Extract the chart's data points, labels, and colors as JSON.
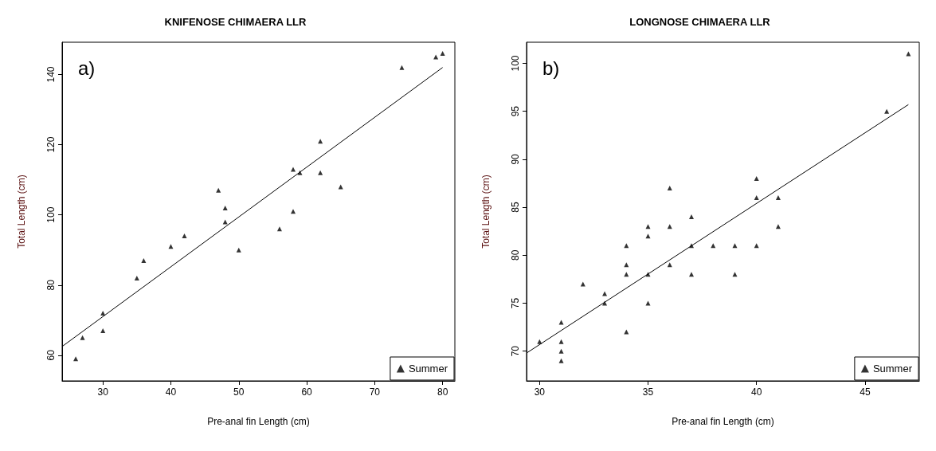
{
  "chart_data": [
    {
      "type": "scatter",
      "title": "KNIFENOSE CHIMAERA LLR",
      "xlabel": "Pre-anal fin Length (cm)",
      "ylabel": "Total Length (cm)",
      "annotations": [
        "a)"
      ],
      "legend": "bottom right",
      "xlim": [
        24,
        81.8
      ],
      "xticks": [
        30,
        40,
        50,
        60,
        70,
        80
      ],
      "ylim": [
        52.7,
        149.2
      ],
      "yticks": [
        60,
        80,
        100,
        120,
        140
      ],
      "series": [
        {
          "name": "Summer",
          "color": "#000000",
          "marker": "triangle",
          "x": [
            26,
            27,
            30,
            30,
            35,
            36,
            40,
            42,
            47,
            48,
            48,
            50,
            56,
            58,
            58,
            59,
            62,
            62,
            65,
            74,
            79,
            80
          ],
          "values": [
            59,
            65,
            72,
            67,
            82,
            87,
            91,
            94,
            107,
            102,
            98,
            90,
            96,
            113,
            101,
            112,
            121,
            112,
            108,
            142,
            145,
            146
          ]
        },
        {
          "type": "line",
          "color": "#000000",
          "marker": "none",
          "x": [
            24,
            80
          ],
          "values": [
            62.5,
            142
          ]
        }
      ]
    },
    {
      "type": "scatter",
      "title": "LONGNOSE CHIMAERA LLR",
      "xlabel": "Pre-anal fin Length (cm)",
      "ylabel": "Total Length (cm)",
      "annotations": [
        "b)"
      ],
      "legend": "bottom right",
      "xlim": [
        29.4,
        47.5
      ],
      "xticks": [
        30,
        35,
        40,
        45
      ],
      "ylim": [
        66.9,
        102.2
      ],
      "yticks": [
        70,
        75,
        80,
        85,
        90,
        95,
        100
      ],
      "series": [
        {
          "name": "Summer",
          "color": "#000000",
          "marker": "triangle",
          "x": [
            30,
            31,
            31,
            31,
            31,
            32,
            33,
            33,
            34,
            34,
            34,
            34,
            35,
            35,
            35,
            35,
            36,
            36,
            36,
            37,
            37,
            37,
            38,
            39,
            39,
            40,
            40,
            40,
            41,
            41,
            46,
            47
          ],
          "values": [
            71,
            73,
            71,
            70,
            69,
            77,
            76,
            75,
            81,
            79,
            78,
            72,
            83,
            82,
            78,
            75,
            87,
            83,
            79,
            84,
            81,
            78,
            81,
            81,
            78,
            88,
            86,
            81,
            86,
            83,
            95,
            101
          ]
        },
        {
          "type": "line",
          "color": "#000000",
          "marker": "none",
          "x": [
            29.4,
            47
          ],
          "values": [
            69.8,
            95.7
          ]
        }
      ]
    }
  ]
}
